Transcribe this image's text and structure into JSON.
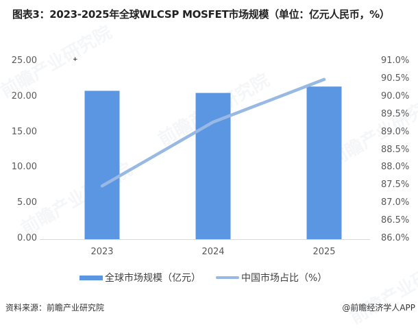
{
  "title": "图表3：2023-2025年全球WLCSP MOSFET市场规模（单位：亿元人民币，%）",
  "chart_data": {
    "type": "bar+line",
    "title": "图表3：2023-2025年全球WLCSP MOSFET市场规模（单位：亿元人民币，%）",
    "categories": [
      "2023",
      "2024",
      "2025"
    ],
    "series": [
      {
        "name": "全球市场规模（亿元）",
        "type": "bar",
        "axis": "left",
        "color": "#5B96E3",
        "values": [
          20.9,
          20.6,
          21.5
        ]
      },
      {
        "name": "中国市场占比（%）",
        "type": "line",
        "axis": "right",
        "color": "#97B9E3",
        "values": [
          87.5,
          89.3,
          90.5
        ]
      }
    ],
    "left_axis": {
      "ylim": [
        0,
        25
      ],
      "ticks": [
        "0.00",
        "5.00",
        "10.00",
        "15.00",
        "20.00",
        "25.00"
      ]
    },
    "right_axis": {
      "ylim": [
        86.0,
        91.0
      ],
      "ticks": [
        "86.0%",
        "86.5%",
        "87.0%",
        "87.5%",
        "88.0%",
        "88.5%",
        "89.0%",
        "89.5%",
        "90.0%",
        "90.5%",
        "91.0%"
      ]
    },
    "xlabel": "",
    "ylabel": "",
    "grid": false,
    "legend_position": "bottom"
  },
  "legend": {
    "bar_label": "全球市场规模（亿元）",
    "line_label": "中国市场占比（%）"
  },
  "footer": {
    "source": "资料来源：前瞻产业研究院",
    "credit": "@前瞻经济学人APP"
  },
  "watermark": "前瞻产业研究院"
}
